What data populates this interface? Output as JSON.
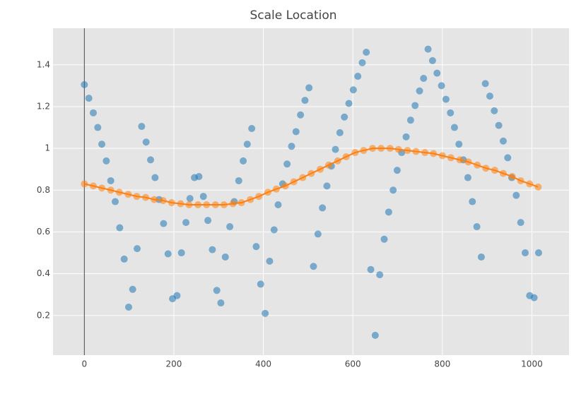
{
  "chart_data": {
    "type": "scatter",
    "title": "Scale Location",
    "xlim": [
      -70,
      1083
    ],
    "ylim": [
      0.01,
      1.575
    ],
    "xticks": [
      0,
      200,
      400,
      600,
      800,
      1000
    ],
    "yticks": [
      0.2,
      0.4,
      0.6,
      0.8,
      1,
      1.2,
      1.4
    ],
    "grid": true,
    "zeroline": true,
    "background": "#e5e5e5",
    "series": [
      {
        "color": "#1f77b4",
        "mode": "markers",
        "x": [
          0,
          10,
          20,
          30,
          39,
          49,
          59,
          69,
          79,
          89,
          99,
          108,
          118,
          128,
          138,
          148,
          158,
          167,
          177,
          187,
          197,
          207,
          217,
          227,
          236,
          246,
          256,
          266,
          276,
          286,
          296,
          305,
          315,
          325,
          335,
          345,
          355,
          364,
          374,
          384,
          394,
          404,
          414,
          424,
          433,
          443,
          453,
          463,
          473,
          483,
          493,
          502,
          512,
          522,
          532,
          542,
          552,
          561,
          571,
          581,
          591,
          601,
          611,
          621,
          630,
          640,
          650,
          660,
          670,
          680,
          690,
          699,
          709,
          719,
          729,
          739,
          749,
          758,
          768,
          778,
          788,
          798,
          808,
          818,
          827,
          837,
          847,
          857,
          867,
          877,
          887,
          896,
          906,
          916,
          926,
          936,
          946,
          955,
          965,
          975,
          985,
          995,
          1005,
          1015
        ],
        "values": [
          1.305,
          1.24,
          1.17,
          1.1,
          1.02,
          0.94,
          0.845,
          0.745,
          0.62,
          0.47,
          0.24,
          0.325,
          0.52,
          1.105,
          1.03,
          0.945,
          0.86,
          0.755,
          0.64,
          0.495,
          0.28,
          0.295,
          0.5,
          0.645,
          0.76,
          0.86,
          0.865,
          0.77,
          0.655,
          0.515,
          0.32,
          0.26,
          0.48,
          0.625,
          0.745,
          0.845,
          0.94,
          1.02,
          1.095,
          0.53,
          0.35,
          0.21,
          0.46,
          0.61,
          0.73,
          0.83,
          0.925,
          1.01,
          1.08,
          1.16,
          1.23,
          1.29,
          0.435,
          0.59,
          0.715,
          0.82,
          0.915,
          0.995,
          1.075,
          1.15,
          1.215,
          1.28,
          1.345,
          1.41,
          1.46,
          0.42,
          0.105,
          0.395,
          0.565,
          0.695,
          0.8,
          0.895,
          0.98,
          1.055,
          1.135,
          1.205,
          1.275,
          1.335,
          1.475,
          1.42,
          1.36,
          1.3,
          1.235,
          1.17,
          1.1,
          1.02,
          0.945,
          0.86,
          0.745,
          0.625,
          0.48,
          1.31,
          1.25,
          1.18,
          1.11,
          1.035,
          0.955,
          0.86,
          0.775,
          0.645,
          0.5,
          0.295,
          0.285,
          0.5
        ]
      },
      {
        "color": "#ff7f0e",
        "mode": "lines+markers",
        "x": [
          0,
          20,
          39,
          59,
          78,
          98,
          117,
          137,
          156,
          176,
          195,
          215,
          234,
          254,
          273,
          293,
          312,
          332,
          351,
          371,
          390,
          410,
          429,
          449,
          468,
          488,
          507,
          527,
          546,
          566,
          585,
          605,
          624,
          644,
          663,
          683,
          702,
          722,
          741,
          761,
          780,
          800,
          819,
          839,
          858,
          878,
          897,
          917,
          936,
          956,
          975,
          995,
          1014
        ],
        "values": [
          0.83,
          0.82,
          0.81,
          0.8,
          0.79,
          0.78,
          0.77,
          0.765,
          0.755,
          0.75,
          0.74,
          0.735,
          0.73,
          0.73,
          0.73,
          0.73,
          0.73,
          0.735,
          0.74,
          0.755,
          0.77,
          0.79,
          0.805,
          0.82,
          0.84,
          0.86,
          0.88,
          0.9,
          0.92,
          0.94,
          0.96,
          0.98,
          0.99,
          1.0,
          1.0,
          1.0,
          0.995,
          0.99,
          0.985,
          0.98,
          0.975,
          0.965,
          0.955,
          0.945,
          0.935,
          0.92,
          0.905,
          0.895,
          0.88,
          0.865,
          0.845,
          0.83,
          0.815
        ]
      }
    ]
  }
}
